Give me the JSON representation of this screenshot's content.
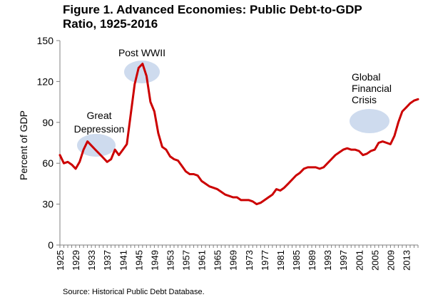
{
  "chart_data": {
    "type": "line",
    "title_line1": "Figure 1. Advanced Economies: Public Debt-to-GDP",
    "title_line2": "Ratio, 1925-2016",
    "xlabel": "",
    "ylabel": "Percent of GDP",
    "ylim": [
      0,
      150
    ],
    "yticks": [
      0,
      30,
      60,
      90,
      120,
      150
    ],
    "xlim": [
      1925,
      2016
    ],
    "xtick_labels": [
      "1925",
      "1929",
      "1933",
      "1937",
      "1941",
      "1945",
      "1949",
      "1953",
      "1957",
      "1961",
      "1965",
      "1969",
      "1973",
      "1977",
      "1981",
      "1985",
      "1989",
      "1993",
      "1997",
      "2001",
      "2005",
      "2009",
      "2013"
    ],
    "grid": false,
    "line_color": "#cc0000",
    "highlight_color": "#c9d7ec",
    "series": [
      {
        "name": "Public Debt-to-GDP",
        "x": [
          1925,
          1926,
          1927,
          1928,
          1929,
          1930,
          1931,
          1932,
          1933,
          1934,
          1935,
          1936,
          1937,
          1938,
          1939,
          1940,
          1941,
          1942,
          1943,
          1944,
          1945,
          1946,
          1947,
          1948,
          1949,
          1950,
          1951,
          1952,
          1953,
          1954,
          1955,
          1956,
          1957,
          1958,
          1959,
          1960,
          1961,
          1962,
          1963,
          1964,
          1965,
          1966,
          1967,
          1968,
          1969,
          1970,
          1971,
          1972,
          1973,
          1974,
          1975,
          1976,
          1977,
          1978,
          1979,
          1980,
          1981,
          1982,
          1983,
          1984,
          1985,
          1986,
          1987,
          1988,
          1989,
          1990,
          1991,
          1992,
          1993,
          1994,
          1995,
          1996,
          1997,
          1998,
          1999,
          2000,
          2001,
          2002,
          2003,
          2004,
          2005,
          2006,
          2007,
          2008,
          2009,
          2010,
          2011,
          2012,
          2013,
          2014,
          2015,
          2016
        ],
        "values": [
          66,
          60,
          61,
          59,
          56,
          61,
          70,
          76,
          73,
          70,
          67,
          64,
          61,
          63,
          70,
          66,
          70,
          74,
          96,
          118,
          130,
          133,
          124,
          105,
          98,
          82,
          72,
          70,
          65,
          63,
          62,
          58,
          54,
          52,
          52,
          51,
          47,
          45,
          43,
          42,
          41,
          39,
          37,
          36,
          35,
          35,
          33,
          33,
          33,
          32,
          30,
          31,
          33,
          35,
          37,
          41,
          40,
          42,
          45,
          48,
          51,
          53,
          56,
          57,
          57,
          57,
          56,
          57,
          60,
          63,
          66,
          68,
          70,
          71,
          70,
          70,
          69,
          66,
          67,
          69,
          70,
          75,
          76,
          75,
          74,
          80,
          90,
          98,
          101,
          104,
          106,
          107
        ]
      }
    ],
    "annotations": [
      {
        "text_lines": [
          "Great",
          "Depression"
        ]
      },
      {
        "text_lines": [
          "Post WWII"
        ]
      },
      {
        "text_lines": [
          "Global",
          "Financial",
          "Crisis"
        ]
      }
    ],
    "source": "Source: Historical Public Debt Database."
  }
}
